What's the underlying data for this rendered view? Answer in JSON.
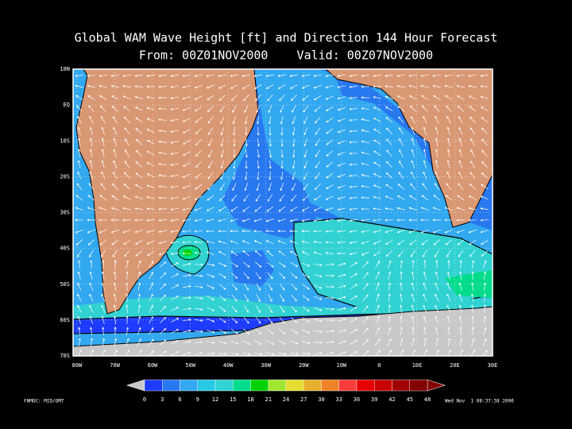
{
  "title": "Global WAM Wave Height [ft] and Direction 144 Hour Forecast",
  "subtitle": "From: 00Z01NOV2000    Valid: 00Z07NOV2000",
  "lat_labels": [
    "10N",
    "EQ",
    "10S",
    "20S",
    "30S",
    "40S",
    "50S",
    "60S",
    "70S"
  ],
  "lon_labels": [
    "80W",
    "70W",
    "60W",
    "50W",
    "40W",
    "30W",
    "20W",
    "10W",
    "0",
    "10E",
    "20E",
    "30E"
  ],
  "colorbar": {
    "levels": [
      0,
      3,
      6,
      9,
      12,
      15,
      18,
      21,
      24,
      27,
      30,
      33,
      36,
      39,
      42,
      45,
      48
    ],
    "colors": [
      "#1e3cff",
      "#2878f0",
      "#32a8f0",
      "#28c8e6",
      "#32d2d2",
      "#00dc8c",
      "#00d200",
      "#a0e632",
      "#e6dc32",
      "#e6af2d",
      "#f08228",
      "#fa3c3c",
      "#e60000",
      "#c80000",
      "#a00000",
      "#820000"
    ],
    "under_color": "#c8c8c8",
    "over_color": "#820000"
  },
  "footer": {
    "source": "FNMOC: MID/OMT",
    "timestamp": "Wed Nov  1 08:37:38 2000"
  }
}
